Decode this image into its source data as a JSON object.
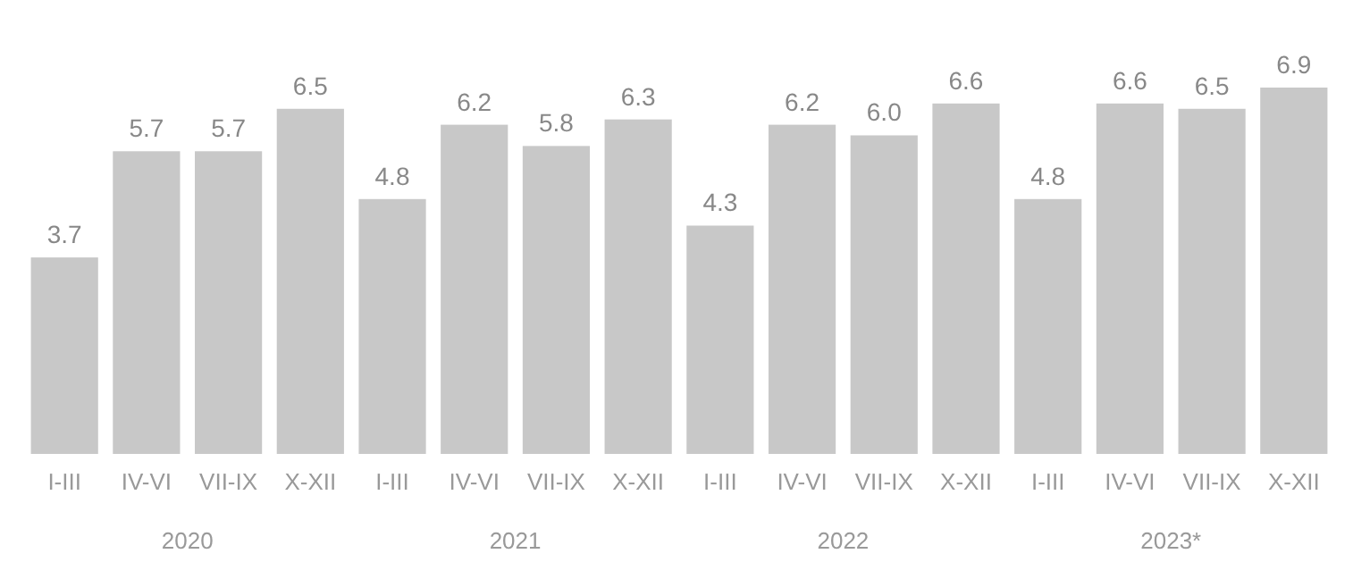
{
  "chart_data": {
    "type": "bar",
    "categories": [
      "I-III",
      "IV-VI",
      "VII-IX",
      "X-XII",
      "I-III",
      "IV-VI",
      "VII-IX",
      "X-XII",
      "I-III",
      "IV-VI",
      "VII-IX",
      "X-XII",
      "I-III",
      "IV-VI",
      "VII-IX",
      "X-XII"
    ],
    "values": [
      3.7,
      5.7,
      5.7,
      6.5,
      4.8,
      6.2,
      5.8,
      6.3,
      4.3,
      6.2,
      6.0,
      6.6,
      4.8,
      6.6,
      6.5,
      6.9
    ],
    "color": "#c8c8c8",
    "value_labels": [
      "3.7",
      "5.7",
      "5.7",
      "6.5",
      "4.8",
      "6.2",
      "5.8",
      "6.3",
      "4.3",
      "6.2",
      "6.0",
      "6.6",
      "4.8",
      "6.6",
      "6.5",
      "6.9"
    ],
    "annotations": [
      "2020",
      "2021",
      "2022",
      "2023*"
    ]
  }
}
